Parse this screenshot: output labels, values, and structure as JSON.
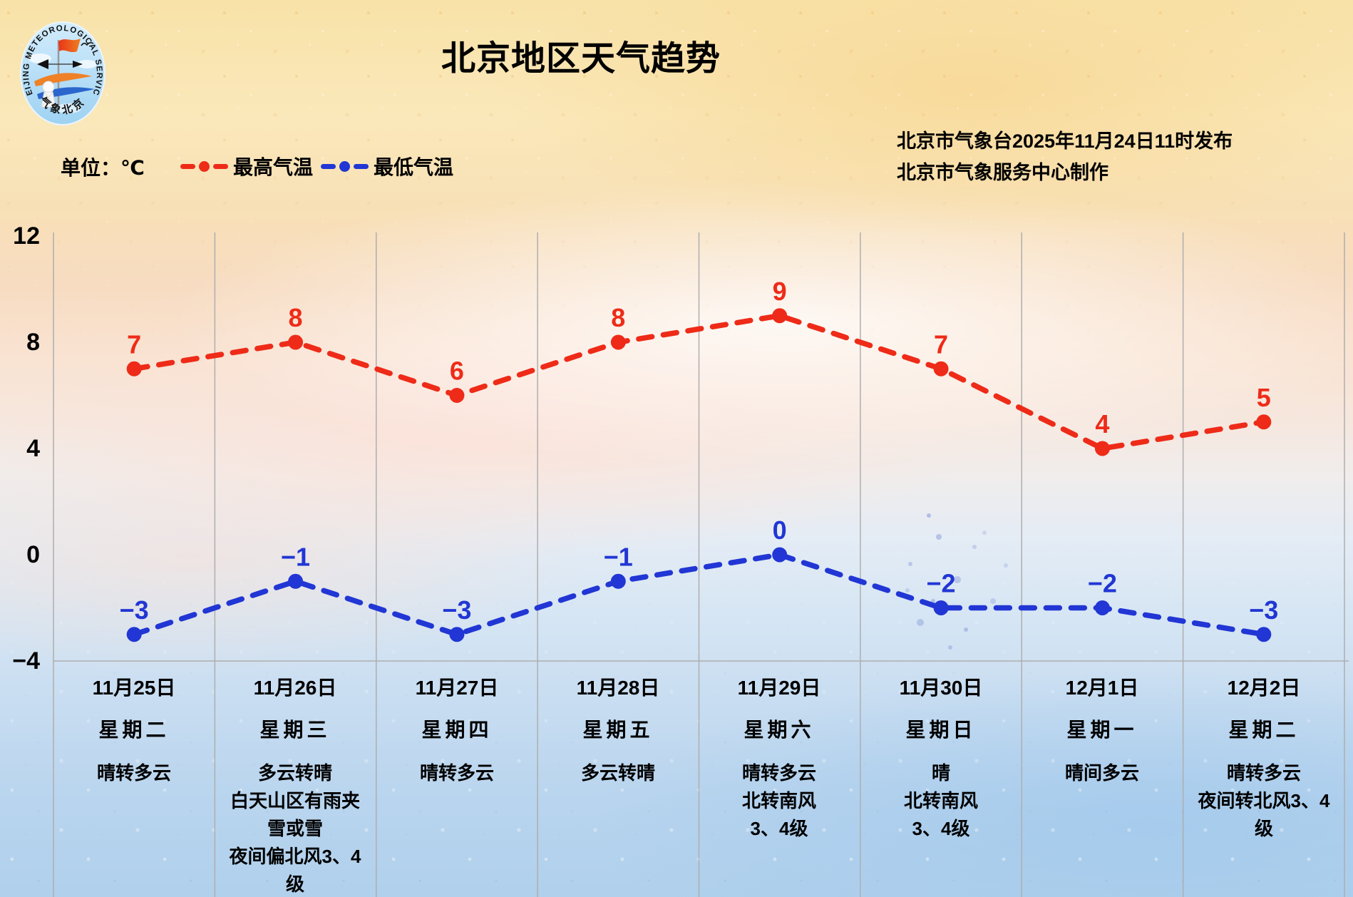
{
  "header": {
    "title": "北京地区天气趋势",
    "release_line1": "北京市气象台2025年11月24日11时发布",
    "release_line2": "北京市气象服务中心制作"
  },
  "logo": {
    "arc_text": "BEIJING METEOROLOGICAL SERVICE",
    "bottom_text": "气象北京"
  },
  "legend": {
    "unit_label": "单位：℃"
  },
  "chart_data": {
    "type": "line",
    "title": "北京地区天气趋势",
    "categories": [
      "11月25日",
      "11月26日",
      "11月27日",
      "11月28日",
      "11月29日",
      "11月30日",
      "12月1日",
      "12月2日"
    ],
    "series": [
      {
        "name": "最高气温",
        "color": "#ee2b18",
        "values": [
          7,
          8,
          6,
          8,
          9,
          7,
          4,
          5
        ]
      },
      {
        "name": "最低气温",
        "color": "#2136d4",
        "values": [
          -3,
          -1,
          -3,
          -1,
          0,
          -2,
          -2,
          -3
        ]
      }
    ],
    "unit": "℃",
    "ylim": [
      -4,
      12
    ],
    "yticks": [
      12,
      8,
      4,
      0,
      -4
    ],
    "ytick_labels": [
      "12",
      "8",
      "4",
      "0",
      "−4"
    ],
    "grid": "vertical day separators, baseline at -4",
    "legend_position": "top-left",
    "line_style": "dashed with round point markers and value labels"
  },
  "days": [
    {
      "date": "11月25日",
      "weekday": "星期二",
      "weather": "晴转多云"
    },
    {
      "date": "11月26日",
      "weekday": "星期三",
      "weather": "多云转晴\n白天山区有雨夹\n雪或雪\n夜间偏北风3、4\n级"
    },
    {
      "date": "11月27日",
      "weekday": "星期四",
      "weather": "晴转多云"
    },
    {
      "date": "11月28日",
      "weekday": "星期五",
      "weather": "多云转晴"
    },
    {
      "date": "11月29日",
      "weekday": "星期六",
      "weather": "晴转多云\n北转南风\n3、4级"
    },
    {
      "date": "11月30日",
      "weekday": "星期日",
      "weather": "晴\n北转南风\n3、4级"
    },
    {
      "date": "12月1日",
      "weekday": "星期一",
      "weather": "晴间多云"
    },
    {
      "date": "12月2日",
      "weekday": "星期二",
      "weather": "晴转多云\n夜间转北风3、4\n级"
    }
  ]
}
